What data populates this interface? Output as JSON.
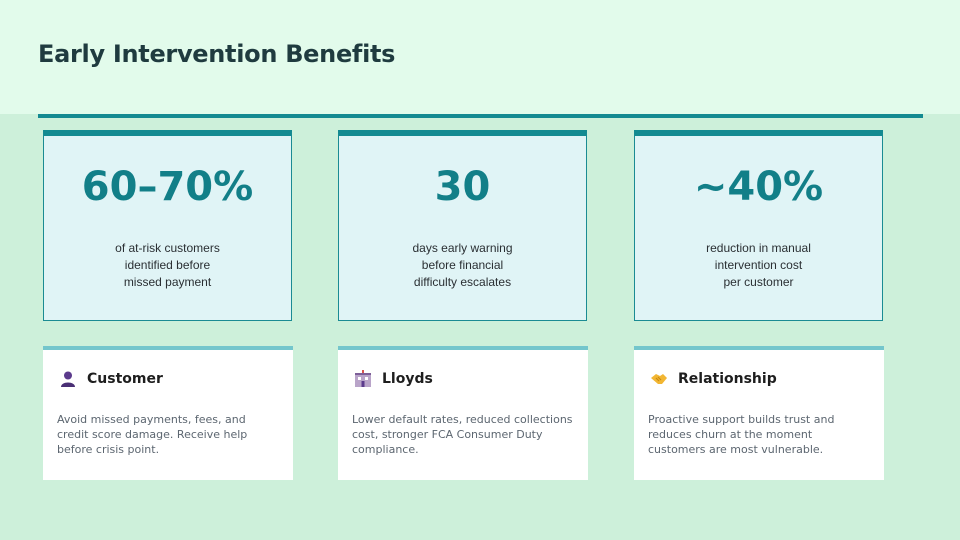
{
  "title": "Early Intervention Benefits",
  "stats": [
    {
      "value": "60–70%",
      "desc": [
        "of at-risk customers",
        "identified before",
        "missed payment"
      ]
    },
    {
      "value": "30",
      "desc": [
        "days early warning",
        "before financial",
        "difficulty escalates"
      ]
    },
    {
      "value": "~40%",
      "desc": [
        "reduction in manual",
        "intervention cost",
        "per customer"
      ]
    }
  ],
  "benefits": [
    {
      "icon": "customer-person-icon",
      "title": "Customer",
      "body": "Avoid missed payments, fees, and credit score damage. Receive help before crisis point."
    },
    {
      "icon": "bank-building-icon",
      "title": "Lloyds",
      "body": "Lower default rates, reduced collections cost, stronger FCA Consumer Duty compliance."
    },
    {
      "icon": "handshake-icon",
      "title": "Relationship",
      "body": "Proactive support builds trust and reduces churn at the moment customers are most vulnerable."
    }
  ],
  "colors": {
    "accent": "#138a91",
    "card_bg": "#e0f4f6",
    "page_bg": "#cdf0da",
    "header_bg": "#e2fbeb"
  }
}
